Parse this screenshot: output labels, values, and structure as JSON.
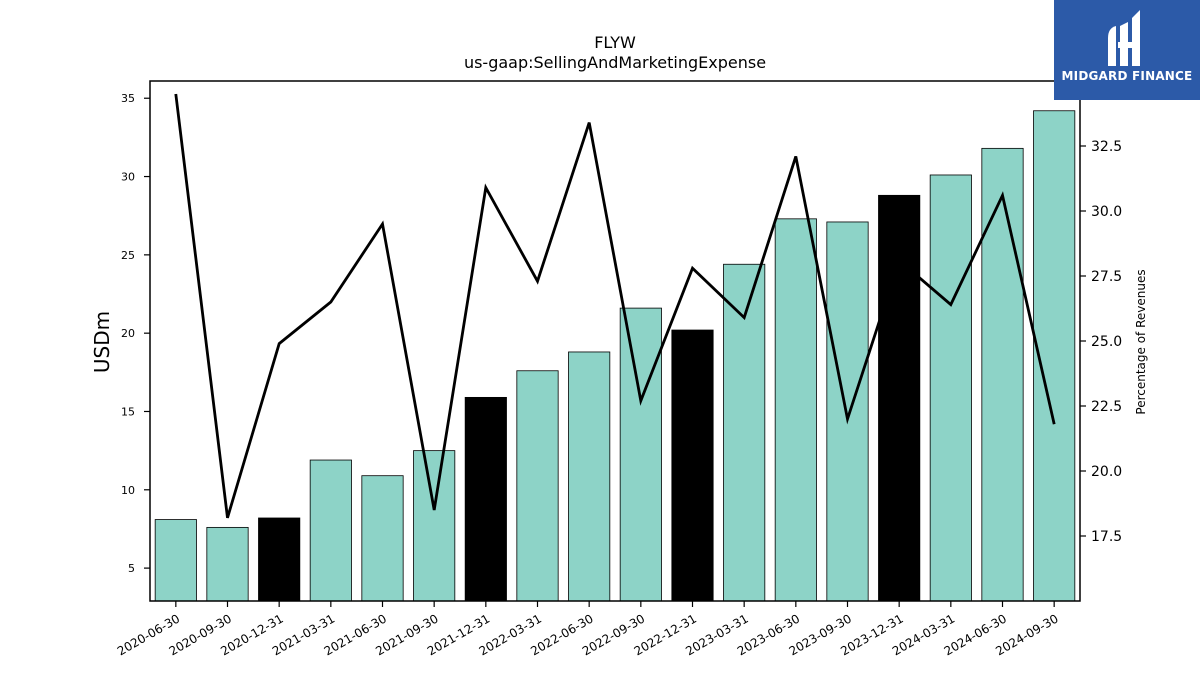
{
  "logo": {
    "text": "MIDGARD FINANCE"
  },
  "chart_data": {
    "type": "bar",
    "title": "FLYW",
    "subtitle": "us-gaap:SellingAndMarketingExpense",
    "ylabel": "USDm",
    "y2label": "Percentage of Revenues",
    "ylim": [
      2.9,
      36.1
    ],
    "y2lim": [
      15.0,
      35.0
    ],
    "yticks": [
      5,
      10,
      15,
      20,
      25,
      30,
      35
    ],
    "y2ticks": [
      "17.5",
      "20.0",
      "22.5",
      "25.0",
      "27.5",
      "30.0",
      "32.5"
    ],
    "categories": [
      "2020-06-30",
      "2020-09-30",
      "2020-12-31",
      "2021-03-31",
      "2021-06-30",
      "2021-09-30",
      "2021-12-31",
      "2022-03-31",
      "2022-06-30",
      "2022-09-30",
      "2022-12-31",
      "2023-03-31",
      "2023-06-30",
      "2023-09-30",
      "2023-12-31",
      "2024-03-31",
      "2024-06-30",
      "2024-09-30"
    ],
    "series": [
      {
        "kind": "bar",
        "axis": "left",
        "values": [
          8.1,
          7.6,
          8.2,
          11.9,
          10.9,
          12.5,
          15.9,
          17.6,
          18.8,
          21.6,
          20.2,
          24.4,
          27.3,
          27.1,
          28.8,
          30.1,
          31.8,
          34.2
        ],
        "colors": [
          "#8dd3c7",
          "#8dd3c7",
          "#000000",
          "#8dd3c7",
          "#8dd3c7",
          "#8dd3c7",
          "#000000",
          "#8dd3c7",
          "#8dd3c7",
          "#8dd3c7",
          "#000000",
          "#8dd3c7",
          "#8dd3c7",
          "#8dd3c7",
          "#000000",
          "#8dd3c7",
          "#8dd3c7",
          "#8dd3c7"
        ]
      },
      {
        "kind": "line",
        "axis": "right",
        "color": "#000000",
        "values": [
          34.5,
          18.2,
          24.9,
          26.5,
          29.5,
          18.5,
          30.9,
          27.3,
          33.4,
          22.7,
          27.8,
          25.9,
          32.1,
          22.0,
          28.1,
          26.4,
          30.6,
          21.8
        ]
      }
    ]
  }
}
